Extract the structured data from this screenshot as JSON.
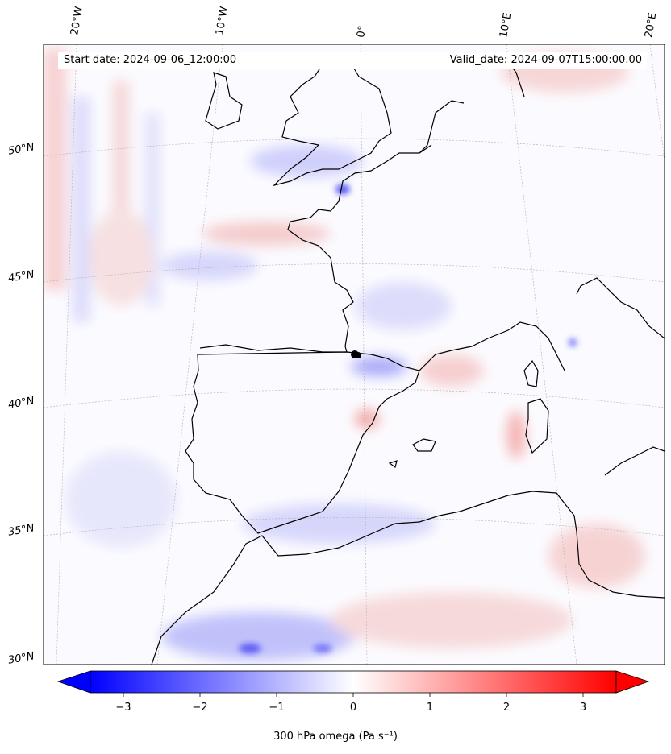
{
  "header": {
    "start_date": "Start date: 2024-09-06_12:00:00",
    "valid_date": "Valid_date: 2024-09-07T15:00:00.00"
  },
  "lon_labels": [
    "20°W",
    "10°W",
    "0°",
    "10°E",
    "20°E"
  ],
  "lat_labels": [
    "50°N",
    "45°N",
    "40°N",
    "35°N",
    "30°N"
  ],
  "colorbar": {
    "label": "300 hPa omega (Pa s⁻¹)",
    "ticks": [
      "−3",
      "−2",
      "−1",
      "0",
      "1",
      "2",
      "3"
    ],
    "min": -3.8,
    "max": 3.8,
    "cmap": "bwr",
    "colors": {
      "low": "#0000ff",
      "mid": "#ffffff",
      "high": "#ff0000"
    }
  },
  "map": {
    "projection": "lambert_conformal",
    "field": "300 hPa omega",
    "coastline_color": "#000000",
    "gridline_color": "#b0b0b0",
    "marker": "black dot near 0°E, 43°N"
  }
}
